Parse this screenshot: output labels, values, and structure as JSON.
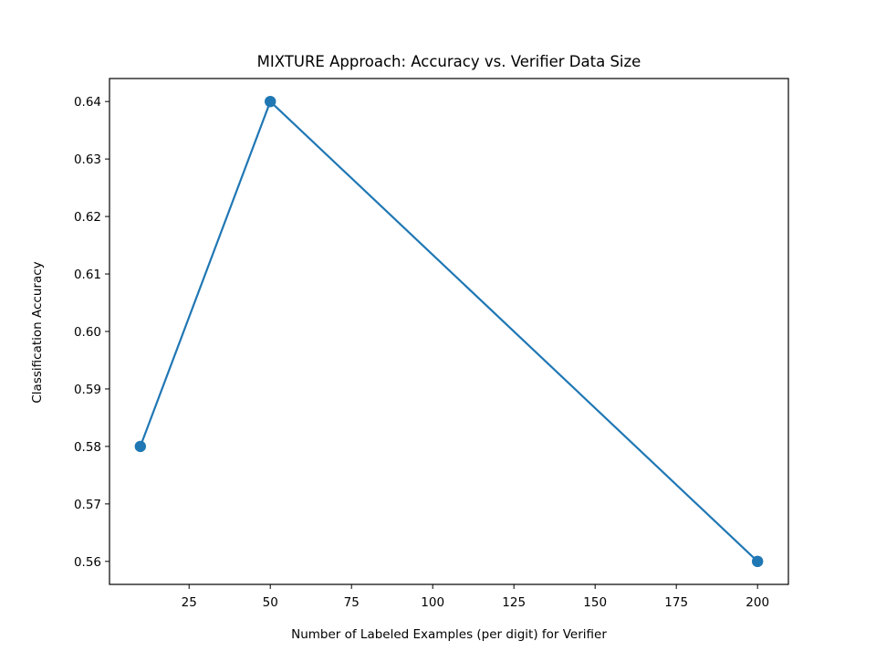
{
  "chart_data": {
    "type": "line",
    "title": "MIXTURE Approach: Accuracy vs. Verifier Data Size",
    "xlabel": "Number of Labeled Examples (per digit) for Verifier",
    "ylabel": "Classification Accuracy",
    "x_ticks": [
      25,
      50,
      75,
      100,
      125,
      150,
      175,
      200
    ],
    "y_ticks": [
      0.56,
      0.57,
      0.58,
      0.59,
      0.6,
      0.61,
      0.62,
      0.63,
      0.64
    ],
    "y_tick_labels": [
      "0.56",
      "0.57",
      "0.58",
      "0.59",
      "0.60",
      "0.61",
      "0.62",
      "0.63",
      "0.64"
    ],
    "xlim": [
      0.5,
      209.5
    ],
    "ylim": [
      0.556,
      0.644
    ],
    "grid": false,
    "series": [
      {
        "x": [
          10,
          50,
          200
        ],
        "y": [
          0.58,
          0.64,
          0.56
        ],
        "color": "#1f77b4",
        "marker": "circle"
      }
    ]
  }
}
